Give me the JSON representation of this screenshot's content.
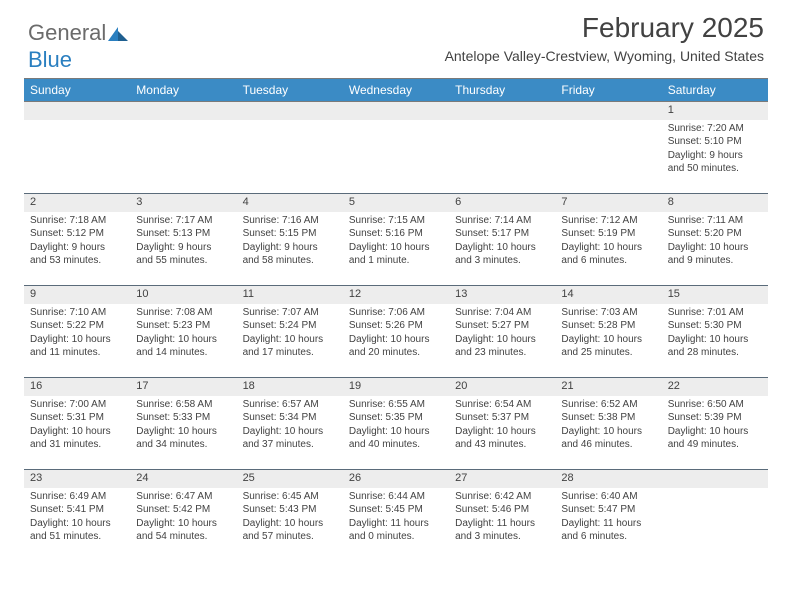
{
  "logo": {
    "text1": "General",
    "text2": "Blue"
  },
  "title": "February 2025",
  "subtitle": "Antelope Valley-Crestview, Wyoming, United States",
  "colors": {
    "header_bg": "#3b8bc5",
    "header_text": "#ffffff",
    "daynum_bg": "#ededed",
    "border": "#5a6b7a",
    "text": "#424242",
    "logo_gray": "#6b6b6b",
    "logo_blue": "#2a7fc0"
  },
  "daysOfWeek": [
    "Sunday",
    "Monday",
    "Tuesday",
    "Wednesday",
    "Thursday",
    "Friday",
    "Saturday"
  ],
  "weeks": [
    {
      "nums": [
        "",
        "",
        "",
        "",
        "",
        "",
        "1"
      ],
      "details": [
        "",
        "",
        "",
        "",
        "",
        "",
        "Sunrise: 7:20 AM\nSunset: 5:10 PM\nDaylight: 9 hours and 50 minutes."
      ]
    },
    {
      "nums": [
        "2",
        "3",
        "4",
        "5",
        "6",
        "7",
        "8"
      ],
      "details": [
        "Sunrise: 7:18 AM\nSunset: 5:12 PM\nDaylight: 9 hours and 53 minutes.",
        "Sunrise: 7:17 AM\nSunset: 5:13 PM\nDaylight: 9 hours and 55 minutes.",
        "Sunrise: 7:16 AM\nSunset: 5:15 PM\nDaylight: 9 hours and 58 minutes.",
        "Sunrise: 7:15 AM\nSunset: 5:16 PM\nDaylight: 10 hours and 1 minute.",
        "Sunrise: 7:14 AM\nSunset: 5:17 PM\nDaylight: 10 hours and 3 minutes.",
        "Sunrise: 7:12 AM\nSunset: 5:19 PM\nDaylight: 10 hours and 6 minutes.",
        "Sunrise: 7:11 AM\nSunset: 5:20 PM\nDaylight: 10 hours and 9 minutes."
      ]
    },
    {
      "nums": [
        "9",
        "10",
        "11",
        "12",
        "13",
        "14",
        "15"
      ],
      "details": [
        "Sunrise: 7:10 AM\nSunset: 5:22 PM\nDaylight: 10 hours and 11 minutes.",
        "Sunrise: 7:08 AM\nSunset: 5:23 PM\nDaylight: 10 hours and 14 minutes.",
        "Sunrise: 7:07 AM\nSunset: 5:24 PM\nDaylight: 10 hours and 17 minutes.",
        "Sunrise: 7:06 AM\nSunset: 5:26 PM\nDaylight: 10 hours and 20 minutes.",
        "Sunrise: 7:04 AM\nSunset: 5:27 PM\nDaylight: 10 hours and 23 minutes.",
        "Sunrise: 7:03 AM\nSunset: 5:28 PM\nDaylight: 10 hours and 25 minutes.",
        "Sunrise: 7:01 AM\nSunset: 5:30 PM\nDaylight: 10 hours and 28 minutes."
      ]
    },
    {
      "nums": [
        "16",
        "17",
        "18",
        "19",
        "20",
        "21",
        "22"
      ],
      "details": [
        "Sunrise: 7:00 AM\nSunset: 5:31 PM\nDaylight: 10 hours and 31 minutes.",
        "Sunrise: 6:58 AM\nSunset: 5:33 PM\nDaylight: 10 hours and 34 minutes.",
        "Sunrise: 6:57 AM\nSunset: 5:34 PM\nDaylight: 10 hours and 37 minutes.",
        "Sunrise: 6:55 AM\nSunset: 5:35 PM\nDaylight: 10 hours and 40 minutes.",
        "Sunrise: 6:54 AM\nSunset: 5:37 PM\nDaylight: 10 hours and 43 minutes.",
        "Sunrise: 6:52 AM\nSunset: 5:38 PM\nDaylight: 10 hours and 46 minutes.",
        "Sunrise: 6:50 AM\nSunset: 5:39 PM\nDaylight: 10 hours and 49 minutes."
      ]
    },
    {
      "nums": [
        "23",
        "24",
        "25",
        "26",
        "27",
        "28",
        ""
      ],
      "details": [
        "Sunrise: 6:49 AM\nSunset: 5:41 PM\nDaylight: 10 hours and 51 minutes.",
        "Sunrise: 6:47 AM\nSunset: 5:42 PM\nDaylight: 10 hours and 54 minutes.",
        "Sunrise: 6:45 AM\nSunset: 5:43 PM\nDaylight: 10 hours and 57 minutes.",
        "Sunrise: 6:44 AM\nSunset: 5:45 PM\nDaylight: 11 hours and 0 minutes.",
        "Sunrise: 6:42 AM\nSunset: 5:46 PM\nDaylight: 11 hours and 3 minutes.",
        "Sunrise: 6:40 AM\nSunset: 5:47 PM\nDaylight: 11 hours and 6 minutes.",
        ""
      ]
    }
  ]
}
